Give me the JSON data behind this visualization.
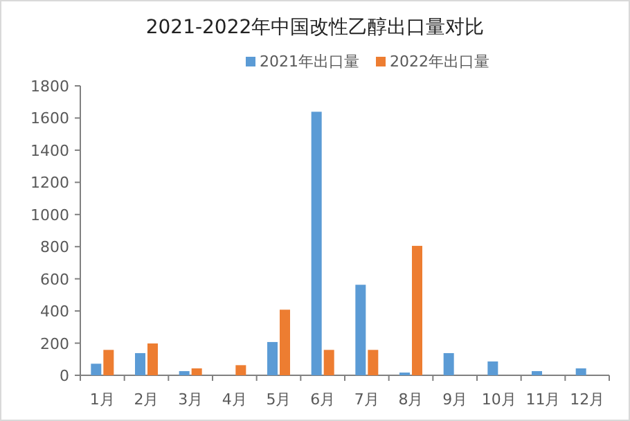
{
  "chart_data": {
    "type": "bar",
    "title": "2021-2022年中国改性乙醇出口量对比",
    "categories": [
      "1月",
      "2月",
      "3月",
      "4月",
      "5月",
      "6月",
      "7月",
      "8月",
      "9月",
      "10月",
      "11月",
      "12月"
    ],
    "series": [
      {
        "name": "2021年出口量",
        "color": "#5b9bd5",
        "values": [
          72,
          138,
          26,
          null,
          207,
          1639,
          563,
          17,
          138,
          86,
          26,
          43
        ]
      },
      {
        "name": "2022年出口量",
        "color": "#ed7d31",
        "values": [
          158,
          198,
          43,
          63,
          408,
          158,
          158,
          805,
          null,
          null,
          null,
          null
        ]
      }
    ],
    "ylim": [
      0,
      1800
    ],
    "yticks": [
      0,
      200,
      400,
      600,
      800,
      1000,
      1200,
      1400,
      1600,
      1800
    ],
    "grid": false,
    "legend": "top"
  }
}
